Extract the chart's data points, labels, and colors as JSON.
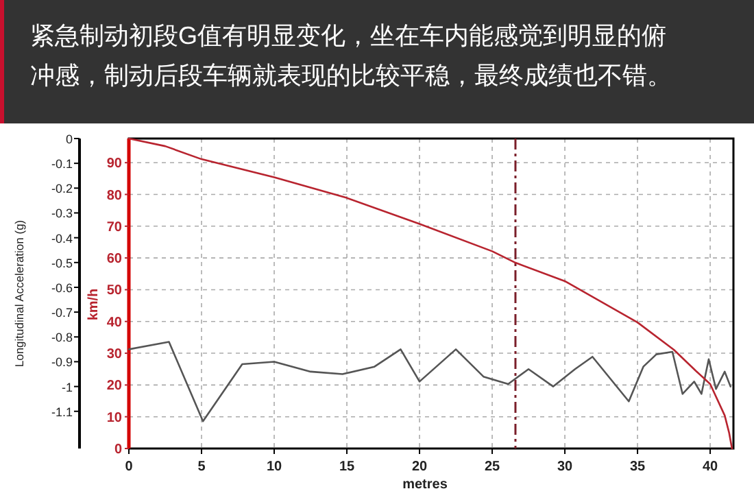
{
  "chart_data": {
    "type": "line",
    "title": "紧急制动初段G值有明显变化，坐在车内能感觉到明显的俯冲感，制动后段车辆就表现的比较平稳，最终成绩也不错。",
    "xlabel": "metres",
    "ylabel": "Longitudinal Acceleration (g)",
    "y2label": "km/h",
    "xlim": [
      0,
      41.6
    ],
    "xticks": [
      0,
      5,
      10,
      15,
      20,
      25,
      30,
      35,
      40
    ],
    "ylim": [
      -1.25,
      0
    ],
    "yticks": [
      0,
      -0.1,
      -0.2,
      -0.3,
      -0.4,
      -0.5,
      -0.6,
      -0.7,
      -0.8,
      -0.9,
      -1,
      -1.1
    ],
    "y2lim": [
      0,
      97.6
    ],
    "y2ticks": [
      0,
      10,
      20,
      30,
      40,
      50,
      60,
      70,
      80,
      90
    ],
    "grid": true,
    "ref_lines": [
      {
        "axis": "x",
        "value": 26.6,
        "color": "#7a1f2a",
        "line_style": "dashed"
      }
    ],
    "series": [
      {
        "color": "#b8242f",
        "axis": "y2",
        "x": [
          0,
          2.5,
          5,
          10,
          15,
          20,
          25,
          26.6,
          30,
          35,
          37.5,
          39,
          40,
          41,
          41.3,
          41.5
        ],
        "values": [
          97.6,
          95.2,
          91.1,
          85.4,
          78.9,
          70.7,
          62.1,
          58.5,
          52.7,
          39.7,
          31.1,
          24.5,
          20.3,
          10.4,
          5,
          0
        ]
      },
      {
        "color": "#555555",
        "x": [
          0,
          2.76,
          5.1,
          7.8,
          10,
          12.5,
          14.7,
          16.9,
          18.7,
          20,
          22.5,
          24.4,
          26.1,
          27.5,
          29.2,
          30.7,
          31.9,
          34.4,
          35.4,
          36.3,
          37.4,
          38.1,
          38.9,
          39.4,
          39.9,
          40.4,
          41,
          41.4
        ],
        "values": [
          -0.85,
          -0.82,
          -1.14,
          -0.91,
          -0.9,
          -0.94,
          -0.95,
          -0.92,
          -0.85,
          -0.98,
          -0.85,
          -0.96,
          -0.99,
          -0.93,
          -1,
          -0.93,
          -0.88,
          -1.06,
          -0.92,
          -0.87,
          -0.86,
          -1.03,
          -0.98,
          -1.03,
          -0.89,
          -1.01,
          -0.94,
          -1
        ]
      }
    ]
  }
}
